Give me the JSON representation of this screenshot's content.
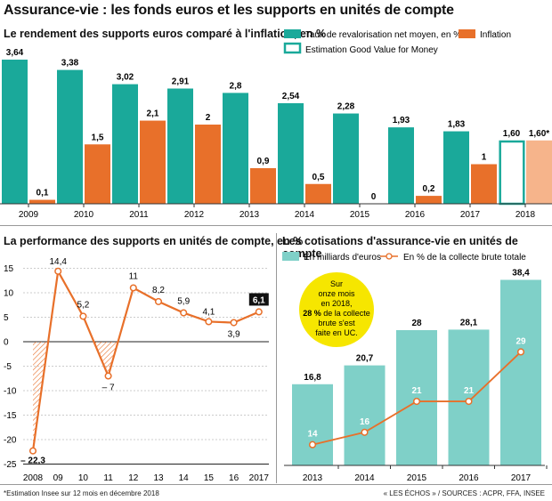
{
  "title": "Assurance-vie : les fonds euros et les supports en unités de compte",
  "colors": {
    "teal": "#1aa99a",
    "orange": "#e8702a",
    "light_orange": "#f6b48b",
    "light_teal": "#7fd0c8",
    "line_orange": "#e8702a"
  },
  "footer": {
    "left": "*Estimation Insee sur 12 mois en décembre 2018",
    "right": "« LES ÉCHOS » / SOURCES : ACPR, FFA, INSEE"
  },
  "chart_data": [
    {
      "type": "bar",
      "title": "Le rendement des supports euros comparé à l'inflation, en %",
      "categories": [
        "2009",
        "2010",
        "2011",
        "2012",
        "2013",
        "2014",
        "2015",
        "2016",
        "2017",
        "2018"
      ],
      "legend": [
        "Taux de revalorisation net moyen, en %",
        "Inflation",
        "Estimation Good Value for Money"
      ],
      "series": [
        {
          "name": "Taux de revalorisation net moyen, en %",
          "values": [
            3.64,
            3.38,
            3.02,
            2.91,
            2.8,
            2.54,
            2.28,
            1.93,
            1.83,
            1.6
          ],
          "labels": [
            "3,64",
            "3,38",
            "3,02",
            "2,91",
            "2,8",
            "2,54",
            "2,28",
            "1,93",
            "1,83",
            "1,60"
          ],
          "estimated_last": true
        },
        {
          "name": "Inflation",
          "values": [
            0.1,
            1.5,
            2.1,
            2,
            0.9,
            0.5,
            0,
            0.2,
            1,
            1.6
          ],
          "labels": [
            "0,1",
            "1,5",
            "2,1",
            "2",
            "0,9",
            "0,5",
            "0",
            "0,2",
            "1",
            "1,60*"
          ],
          "estimated_last": true
        }
      ]
    },
    {
      "type": "line",
      "title": "La performance des supports en unités de compte, en %",
      "x": [
        "2008",
        "09",
        "10",
        "11",
        "12",
        "13",
        "14",
        "15",
        "16",
        "2017"
      ],
      "y_ticks": [
        "15",
        "10",
        "5",
        "0",
        "-5",
        "-10",
        "-15",
        "-20",
        "-25"
      ],
      "ylim": [
        -25,
        15
      ],
      "series": [
        {
          "values": [
            -22.3,
            14.4,
            5.2,
            -7,
            11,
            8.2,
            5.9,
            4.1,
            3.9,
            6.1
          ],
          "labels": [
            "– 22,3",
            "14,4",
            "5,2",
            "– 7",
            "11",
            "8,2",
            "5,9",
            "4,1",
            "3,9",
            "6,1"
          ]
        }
      ]
    },
    {
      "type": "bar",
      "title": "Les cotisations d'assurance-vie en unités de compte",
      "categories": [
        "2013",
        "2014",
        "2015",
        "2016",
        "2017"
      ],
      "legend": [
        "En milliards d'euros",
        "En % de la collecte brute totale"
      ],
      "series": [
        {
          "name": "En milliards d'euros",
          "values": [
            16.8,
            20.7,
            28,
            28.1,
            38.4
          ],
          "labels": [
            "16,8",
            "20,7",
            "28",
            "28,1",
            "38,4"
          ]
        },
        {
          "name": "En % de la collecte brute totale",
          "type": "line",
          "values": [
            14,
            16,
            21,
            21,
            29
          ],
          "labels": [
            "14",
            "16",
            "21",
            "21",
            "29"
          ]
        }
      ],
      "callout": {
        "line1": "Sur",
        "line2": "onze mois",
        "line3": "en 2018,",
        "line4": "28 %",
        "line4b": " de la collecte",
        "line5": "brute s'est",
        "line6": "faite en UC."
      }
    }
  ]
}
